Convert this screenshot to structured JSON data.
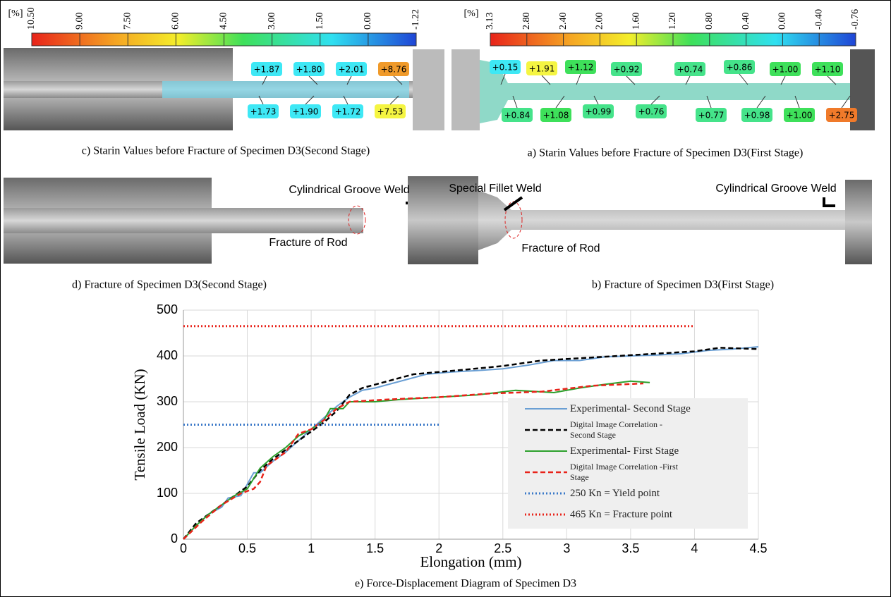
{
  "strain_maps": [
    {
      "caption": "c) Starin Values before Fracture of Specimen D3(Second Stage)",
      "unit": "[%]",
      "scale": [
        "10.50",
        "9.00",
        "7.50",
        "6.00",
        "4.50",
        "3.00",
        "1.50",
        "0.00",
        "-1.22"
      ],
      "labels": [
        {
          "text": "+1.87",
          "color": "#3ee8f5"
        },
        {
          "text": "+1.80",
          "color": "#3ee8f5"
        },
        {
          "text": "+2.01",
          "color": "#3ee8f5"
        },
        {
          "text": "+8.76",
          "color": "#f09a2a"
        },
        {
          "text": "+1.73",
          "color": "#3ee8f5"
        },
        {
          "text": "+1.90",
          "color": "#3ee8f5"
        },
        {
          "text": "+1.72",
          "color": "#3ee8f5"
        },
        {
          "text": "+7.53",
          "color": "#f5f542"
        }
      ]
    },
    {
      "caption": "a) Starin Values before Fracture of Specimen D3(First Stage)",
      "unit": "[%]",
      "scale": [
        "3.13",
        "2.80",
        "2.40",
        "2.00",
        "1.60",
        "1.20",
        "0.80",
        "0.40",
        "0.00",
        "-0.40",
        "-0.76"
      ],
      "labels": [
        {
          "text": "+0.15",
          "color": "#3ee8f5"
        },
        {
          "text": "+1.91",
          "color": "#f5f542"
        },
        {
          "text": "+1.12",
          "color": "#3ee05a"
        },
        {
          "text": "+0.92",
          "color": "#45e38a"
        },
        {
          "text": "+0.74",
          "color": "#45e38a"
        },
        {
          "text": "+0.86",
          "color": "#45e38a"
        },
        {
          "text": "+1.00",
          "color": "#3ee05a"
        },
        {
          "text": "+1.10",
          "color": "#3ee05a"
        },
        {
          "text": "+0.84",
          "color": "#45e38a"
        },
        {
          "text": "+1.08",
          "color": "#3ee05a"
        },
        {
          "text": "+0.99",
          "color": "#45e38a"
        },
        {
          "text": "+0.76",
          "color": "#45e38a"
        },
        {
          "text": "+0.77",
          "color": "#45e38a"
        },
        {
          "text": "+0.98",
          "color": "#45e38a"
        },
        {
          "text": "+1.00",
          "color": "#3ee05a"
        },
        {
          "text": "+2.75",
          "color": "#f07a2a"
        }
      ]
    }
  ],
  "fracture_photos": [
    {
      "caption": "d) Fracture of Specimen D3(Second Stage)",
      "notes": [
        "Cylindrical Groove Weld",
        "Fracture of Rod"
      ]
    },
    {
      "caption": "b) Fracture of Specimen D3(First Stage)",
      "notes": [
        "Special Fillet Weld",
        "Cylindrical Groove Weld",
        "Fracture of Rod"
      ]
    }
  ],
  "chart_data": {
    "type": "line",
    "caption": "e) Force-Displacement Diagram of Specimen D3",
    "x_label": "Elongation (mm)",
    "y_label": "Tensile Load (KN)",
    "xlim": [
      0,
      4.5
    ],
    "xticks": [
      0,
      0.5,
      1,
      1.5,
      2,
      2.5,
      3,
      3.5,
      4,
      4.5
    ],
    "ylim": [
      0,
      500
    ],
    "yticks": [
      0,
      100,
      200,
      300,
      400,
      500
    ],
    "grid": true,
    "series": [
      {
        "name": "Experimental- Second Stage",
        "color": "#6a9fd4",
        "style": "solid",
        "x": [
          0,
          0.1,
          0.2,
          0.3,
          0.35,
          0.45,
          0.5,
          0.55,
          0.6,
          0.7,
          0.8,
          0.9,
          1.0,
          1.1,
          1.2,
          1.3,
          1.4,
          1.5,
          1.7,
          1.9,
          2.1,
          2.3,
          2.5,
          2.7,
          2.9,
          3.1,
          3.3,
          3.5,
          3.7,
          3.9,
          4.1,
          4.3,
          4.5
        ],
        "values": [
          0,
          30,
          55,
          70,
          90,
          95,
          120,
          145,
          145,
          170,
          190,
          215,
          240,
          265,
          290,
          310,
          325,
          330,
          345,
          360,
          365,
          368,
          372,
          380,
          390,
          390,
          398,
          400,
          402,
          405,
          412,
          415,
          420
        ]
      },
      {
        "name": "Digital Image Correlation -Second Stage",
        "color": "#000000",
        "style": "dashed",
        "x": [
          0,
          0.1,
          0.2,
          0.3,
          0.4,
          0.5,
          0.6,
          0.7,
          0.8,
          0.9,
          1.0,
          1.1,
          1.2,
          1.3,
          1.4,
          1.6,
          1.8,
          2.0,
          2.2,
          2.5,
          2.8,
          3.1,
          3.4,
          3.7,
          4.0,
          4.2,
          4.5
        ],
        "values": [
          0,
          35,
          55,
          75,
          95,
          115,
          150,
          175,
          195,
          215,
          235,
          255,
          280,
          315,
          330,
          345,
          360,
          365,
          370,
          378,
          390,
          395,
          400,
          405,
          410,
          418,
          415
        ]
      },
      {
        "name": "Experimental- First Stage",
        "color": "#2ca02c",
        "style": "solid",
        "x": [
          0,
          0.1,
          0.2,
          0.3,
          0.4,
          0.5,
          0.6,
          0.7,
          0.8,
          0.9,
          1.0,
          1.1,
          1.15,
          1.25,
          1.3,
          1.5,
          1.7,
          2.0,
          2.3,
          2.6,
          2.9,
          3.1,
          3.3,
          3.5,
          3.65
        ],
        "values": [
          0,
          30,
          55,
          75,
          95,
          110,
          155,
          180,
          200,
          225,
          240,
          260,
          285,
          285,
          300,
          300,
          305,
          310,
          315,
          325,
          320,
          330,
          338,
          345,
          342
        ]
      },
      {
        "name": "Digital Image Correlation -First Stage",
        "color": "#e8231a",
        "style": "dashed",
        "x": [
          0,
          0.15,
          0.3,
          0.45,
          0.55,
          0.6,
          0.65,
          0.8,
          0.9,
          1.0,
          1.1,
          1.2,
          1.3,
          1.6,
          2.0,
          2.4,
          2.8,
          3.2,
          3.6
        ],
        "values": [
          0,
          40,
          75,
          100,
          110,
          125,
          160,
          190,
          230,
          240,
          260,
          285,
          300,
          305,
          310,
          318,
          322,
          335,
          340
        ]
      },
      {
        "name": "250 Kn = Yield point",
        "color": "#3a78c8",
        "style": "dotted",
        "x": [
          0,
          2
        ],
        "values": [
          250,
          250
        ]
      },
      {
        "name": "465 Kn = Fracture point",
        "color": "#e8231a",
        "style": "dotted",
        "x": [
          0,
          4
        ],
        "values": [
          465,
          465
        ]
      }
    ]
  }
}
